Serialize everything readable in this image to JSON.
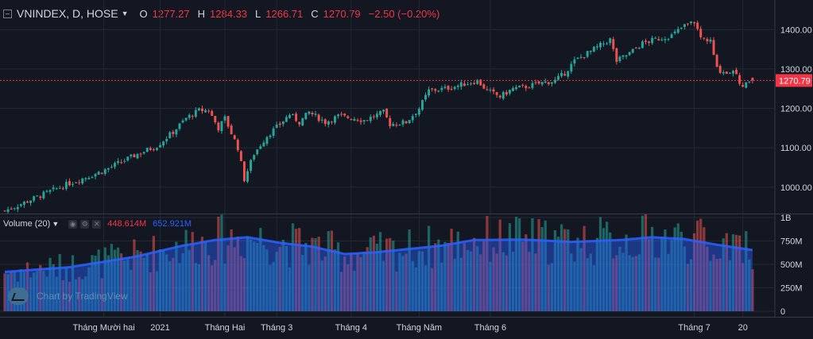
{
  "header": {
    "symbol": "VNINDEX, D, HOSE",
    "open_label": "O",
    "open": "1277.27",
    "high_label": "H",
    "high": "1284.33",
    "low_label": "L",
    "low": "1266.71",
    "close_label": "C",
    "close": "1270.79",
    "change": "−2.50 (−0.20%)"
  },
  "volume_header": {
    "title": "Volume (20)",
    "volume": "448.614M",
    "volume_ma": "652.921M"
  },
  "watermark": "Chart by TradingView",
  "colors": {
    "up": "#26a69a",
    "down": "#ef5350",
    "background": "#131722",
    "grid": "#242832",
    "ma": "#2962ff",
    "price_line": "#f23645"
  },
  "chart_data": [
    {
      "type": "candlestick",
      "title": "VNINDEX, D, HOSE",
      "y_axis": {
        "ticks": [
          1000,
          1100,
          1200,
          1300,
          1400
        ],
        "range": [
          935,
          1455
        ]
      },
      "last_price_label": "1270.79",
      "x_axis_labels": [
        "Tháng Mười hai",
        "2021",
        "Tháng Hai",
        "Tháng 3",
        "Tháng 4",
        "Tháng Năm",
        "Tháng 6",
        "Tháng 7",
        "20"
      ],
      "anchors": [
        {
          "i": 0,
          "v": 940
        },
        {
          "i": 10,
          "v": 975
        },
        {
          "i": 20,
          "v": 1010
        },
        {
          "i": 30,
          "v": 1040
        },
        {
          "i": 40,
          "v": 1080
        },
        {
          "i": 47,
          "v": 1105
        },
        {
          "i": 52,
          "v": 1140
        },
        {
          "i": 56,
          "v": 1175
        },
        {
          "i": 60,
          "v": 1195
        },
        {
          "i": 63,
          "v": 1195
        },
        {
          "i": 66,
          "v": 1150
        },
        {
          "i": 68,
          "v": 1175
        },
        {
          "i": 72,
          "v": 1100
        },
        {
          "i": 74,
          "v": 1020
        },
        {
          "i": 77,
          "v": 1085
        },
        {
          "i": 81,
          "v": 1130
        },
        {
          "i": 85,
          "v": 1160
        },
        {
          "i": 88,
          "v": 1185
        },
        {
          "i": 91,
          "v": 1165
        },
        {
          "i": 94,
          "v": 1190
        },
        {
          "i": 99,
          "v": 1165
        },
        {
          "i": 103,
          "v": 1180
        },
        {
          "i": 108,
          "v": 1175
        },
        {
          "i": 111,
          "v": 1170
        },
        {
          "i": 117,
          "v": 1190
        },
        {
          "i": 119,
          "v": 1160
        },
        {
          "i": 124,
          "v": 1165
        },
        {
          "i": 128,
          "v": 1200
        },
        {
          "i": 131,
          "v": 1245
        },
        {
          "i": 136,
          "v": 1250
        },
        {
          "i": 141,
          "v": 1260
        },
        {
          "i": 146,
          "v": 1270
        },
        {
          "i": 149,
          "v": 1245
        },
        {
          "i": 153,
          "v": 1230
        },
        {
          "i": 157,
          "v": 1250
        },
        {
          "i": 161,
          "v": 1255
        },
        {
          "i": 166,
          "v": 1265
        },
        {
          "i": 170,
          "v": 1270
        },
        {
          "i": 173,
          "v": 1290
        },
        {
          "i": 176,
          "v": 1320
        },
        {
          "i": 180,
          "v": 1340
        },
        {
          "i": 184,
          "v": 1360
        },
        {
          "i": 187,
          "v": 1375
        },
        {
          "i": 189,
          "v": 1320
        },
        {
          "i": 193,
          "v": 1340
        },
        {
          "i": 197,
          "v": 1365
        },
        {
          "i": 201,
          "v": 1375
        },
        {
          "i": 206,
          "v": 1385
        },
        {
          "i": 210,
          "v": 1410
        },
        {
          "i": 213,
          "v": 1420
        },
        {
          "i": 215,
          "v": 1380
        },
        {
          "i": 218,
          "v": 1370
        },
        {
          "i": 220,
          "v": 1300
        },
        {
          "i": 223,
          "v": 1290
        },
        {
          "i": 225,
          "v": 1300
        },
        {
          "i": 228,
          "v": 1250
        },
        {
          "i": 230,
          "v": 1275
        },
        {
          "i": 231,
          "v": 1270.79
        }
      ]
    },
    {
      "type": "bar",
      "title": "Volume (20)",
      "y_axis": {
        "tick_labels": [
          "1B",
          "750M",
          "500M",
          "250M",
          "0"
        ],
        "ticks": [
          1000,
          750,
          500,
          250,
          0
        ],
        "unit": "M"
      },
      "ma_anchors": [
        {
          "i": 0,
          "v": 420
        },
        {
          "i": 20,
          "v": 470
        },
        {
          "i": 40,
          "v": 580
        },
        {
          "i": 55,
          "v": 700
        },
        {
          "i": 65,
          "v": 760
        },
        {
          "i": 75,
          "v": 790
        },
        {
          "i": 85,
          "v": 730
        },
        {
          "i": 95,
          "v": 690
        },
        {
          "i": 105,
          "v": 610
        },
        {
          "i": 115,
          "v": 630
        },
        {
          "i": 125,
          "v": 665
        },
        {
          "i": 135,
          "v": 700
        },
        {
          "i": 145,
          "v": 760
        },
        {
          "i": 160,
          "v": 765
        },
        {
          "i": 175,
          "v": 740
        },
        {
          "i": 190,
          "v": 760
        },
        {
          "i": 200,
          "v": 790
        },
        {
          "i": 210,
          "v": 770
        },
        {
          "i": 220,
          "v": 710
        },
        {
          "i": 231,
          "v": 652.9
        }
      ],
      "last_volume": 448.6,
      "last_ma": 652.9
    }
  ]
}
